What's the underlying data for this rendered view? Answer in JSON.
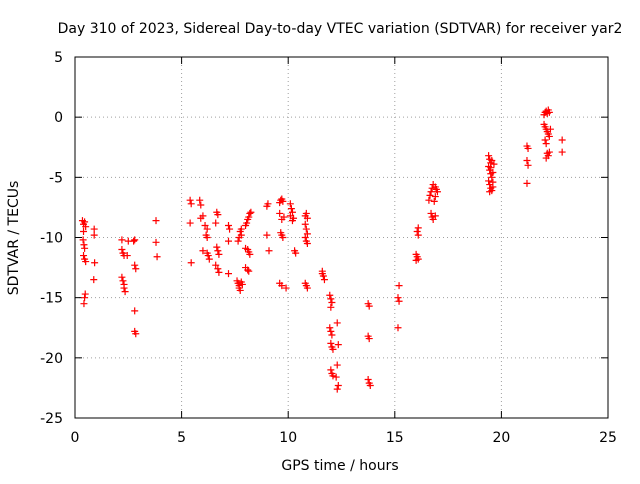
{
  "chart_data": {
    "type": "scatter",
    "title": "Day 310 of 2023, Sidereal Day-to-day VTEC variation (SDTVAR) for receiver yar2",
    "xlabel": "GPS time / hours",
    "ylabel": "SDTVAR / TECUs",
    "xlim": [
      0,
      25
    ],
    "ylim": [
      -25,
      5
    ],
    "xticks": [
      0,
      5,
      10,
      15,
      20,
      25
    ],
    "yticks": [
      -25,
      -20,
      -15,
      -10,
      -5,
      0,
      5
    ],
    "grid": true,
    "marker": "+",
    "color": "#ff0000",
    "series": [
      {
        "name": "SDTVAR",
        "points": [
          [
            0.35,
            -8.6
          ],
          [
            0.4,
            -8.9
          ],
          [
            0.45,
            -8.7
          ],
          [
            0.5,
            -9.1
          ],
          [
            0.4,
            -9.5
          ],
          [
            0.38,
            -10.2
          ],
          [
            0.42,
            -10.6
          ],
          [
            0.45,
            -10.9
          ],
          [
            0.4,
            -11.5
          ],
          [
            0.45,
            -11.8
          ],
          [
            0.5,
            -12.0
          ],
          [
            0.48,
            -14.7
          ],
          [
            0.45,
            -15.0
          ],
          [
            0.42,
            -15.5
          ],
          [
            0.9,
            -9.3
          ],
          [
            0.9,
            -9.8
          ],
          [
            0.92,
            -12.1
          ],
          [
            0.88,
            -13.5
          ],
          [
            2.2,
            -10.2
          ],
          [
            2.2,
            -11.0
          ],
          [
            2.25,
            -11.3
          ],
          [
            2.3,
            -11.5
          ],
          [
            2.2,
            -13.3
          ],
          [
            2.25,
            -13.6
          ],
          [
            2.3,
            -13.9
          ],
          [
            2.3,
            -14.2
          ],
          [
            2.35,
            -14.5
          ],
          [
            2.5,
            -10.3
          ],
          [
            2.45,
            -11.5
          ],
          [
            2.75,
            -10.3
          ],
          [
            2.8,
            -10.2
          ],
          [
            2.8,
            -12.3
          ],
          [
            2.85,
            -12.6
          ],
          [
            2.8,
            -16.1
          ],
          [
            2.8,
            -17.8
          ],
          [
            2.85,
            -18.0
          ],
          [
            3.8,
            -8.6
          ],
          [
            3.8,
            -10.4
          ],
          [
            3.85,
            -11.6
          ],
          [
            5.4,
            -6.9
          ],
          [
            5.45,
            -7.2
          ],
          [
            5.4,
            -8.8
          ],
          [
            5.45,
            -12.1
          ],
          [
            5.85,
            -6.9
          ],
          [
            5.9,
            -7.3
          ],
          [
            6.0,
            -8.2
          ],
          [
            5.9,
            -8.4
          ],
          [
            6.1,
            -9.0
          ],
          [
            6.2,
            -9.3
          ],
          [
            6.15,
            -9.8
          ],
          [
            6.2,
            -10.0
          ],
          [
            6.0,
            -11.1
          ],
          [
            6.2,
            -11.3
          ],
          [
            6.25,
            -11.5
          ],
          [
            6.3,
            -11.8
          ],
          [
            6.65,
            -7.9
          ],
          [
            6.7,
            -8.1
          ],
          [
            6.6,
            -8.8
          ],
          [
            6.65,
            -10.8
          ],
          [
            6.7,
            -11.1
          ],
          [
            6.75,
            -11.4
          ],
          [
            6.6,
            -12.3
          ],
          [
            6.7,
            -12.6
          ],
          [
            6.75,
            -12.9
          ],
          [
            7.2,
            -9.0
          ],
          [
            7.25,
            -9.3
          ],
          [
            7.2,
            -10.3
          ],
          [
            7.2,
            -13.0
          ],
          [
            7.65,
            -10.3
          ],
          [
            7.7,
            -10.0
          ],
          [
            7.8,
            -9.8
          ],
          [
            7.75,
            -9.5
          ],
          [
            7.8,
            -9.3
          ],
          [
            7.6,
            -13.6
          ],
          [
            7.65,
            -13.8
          ],
          [
            7.7,
            -14.0
          ],
          [
            7.7,
            -14.2
          ],
          [
            7.75,
            -14.4
          ],
          [
            7.8,
            -13.7
          ],
          [
            7.85,
            -13.9
          ],
          [
            8.0,
            -9.0
          ],
          [
            8.05,
            -8.8
          ],
          [
            8.1,
            -8.5
          ],
          [
            8.15,
            -8.3
          ],
          [
            8.2,
            -8.0
          ],
          [
            8.25,
            -7.9
          ],
          [
            8.0,
            -10.9
          ],
          [
            8.1,
            -11.0
          ],
          [
            8.15,
            -11.2
          ],
          [
            8.2,
            -11.4
          ],
          [
            8.0,
            -12.5
          ],
          [
            8.1,
            -12.7
          ],
          [
            8.15,
            -12.8
          ],
          [
            9.0,
            -7.4
          ],
          [
            9.05,
            -7.2
          ],
          [
            9.0,
            -9.8
          ],
          [
            9.1,
            -11.1
          ],
          [
            9.6,
            -7.1
          ],
          [
            9.65,
            -6.9
          ],
          [
            9.7,
            -6.8
          ],
          [
            9.75,
            -7.0
          ],
          [
            9.6,
            -8.0
          ],
          [
            9.7,
            -8.5
          ],
          [
            9.8,
            -8.3
          ],
          [
            9.65,
            -9.6
          ],
          [
            9.7,
            -9.8
          ],
          [
            9.75,
            -10.0
          ],
          [
            9.6,
            -13.8
          ],
          [
            9.7,
            -14.0
          ],
          [
            9.9,
            -14.2
          ],
          [
            10.1,
            -7.2
          ],
          [
            10.15,
            -7.6
          ],
          [
            10.2,
            -7.9
          ],
          [
            10.1,
            -8.2
          ],
          [
            10.25,
            -8.4
          ],
          [
            10.2,
            -8.6
          ],
          [
            10.3,
            -11.1
          ],
          [
            10.35,
            -11.3
          ],
          [
            10.8,
            -8.2
          ],
          [
            10.85,
            -8.0
          ],
          [
            10.9,
            -8.4
          ],
          [
            10.8,
            -8.9
          ],
          [
            10.85,
            -9.3
          ],
          [
            10.9,
            -9.7
          ],
          [
            10.8,
            -10.0
          ],
          [
            10.85,
            -10.3
          ],
          [
            10.9,
            -10.5
          ],
          [
            10.8,
            -13.8
          ],
          [
            10.85,
            -14.0
          ],
          [
            10.9,
            -14.2
          ],
          [
            11.6,
            -12.8
          ],
          [
            11.65,
            -13.2
          ],
          [
            11.7,
            -13.5
          ],
          [
            11.6,
            -13.0
          ],
          [
            11.95,
            -14.8
          ],
          [
            12.0,
            -15.1
          ],
          [
            12.05,
            -15.4
          ],
          [
            12.0,
            -15.8
          ],
          [
            11.95,
            -17.5
          ],
          [
            12.0,
            -17.8
          ],
          [
            12.05,
            -18.1
          ],
          [
            12.0,
            -18.8
          ],
          [
            12.05,
            -19.1
          ],
          [
            12.1,
            -19.3
          ],
          [
            12.0,
            -21.0
          ],
          [
            12.05,
            -21.3
          ],
          [
            12.1,
            -21.5
          ],
          [
            12.3,
            -17.1
          ],
          [
            12.35,
            -18.9
          ],
          [
            12.3,
            -20.6
          ],
          [
            12.25,
            -21.6
          ],
          [
            12.35,
            -22.3
          ],
          [
            12.3,
            -22.6
          ],
          [
            13.75,
            -15.5
          ],
          [
            13.8,
            -15.7
          ],
          [
            13.75,
            -18.2
          ],
          [
            13.8,
            -18.4
          ],
          [
            13.75,
            -21.8
          ],
          [
            13.8,
            -22.1
          ],
          [
            13.85,
            -22.3
          ],
          [
            15.2,
            -14.0
          ],
          [
            15.15,
            -15.0
          ],
          [
            15.2,
            -15.3
          ],
          [
            15.15,
            -17.5
          ],
          [
            16.0,
            -11.4
          ],
          [
            16.05,
            -11.6
          ],
          [
            16.1,
            -11.8
          ],
          [
            16.0,
            -11.9
          ],
          [
            16.1,
            -9.8
          ],
          [
            16.05,
            -9.5
          ],
          [
            16.1,
            -9.2
          ],
          [
            16.6,
            -6.9
          ],
          [
            16.65,
            -6.5
          ],
          [
            16.7,
            -6.2
          ],
          [
            16.75,
            -5.9
          ],
          [
            16.8,
            -5.6
          ],
          [
            16.9,
            -5.8
          ],
          [
            16.95,
            -6.0
          ],
          [
            17.0,
            -6.2
          ],
          [
            16.9,
            -6.6
          ],
          [
            16.85,
            -7.0
          ],
          [
            16.7,
            -8.0
          ],
          [
            16.75,
            -8.3
          ],
          [
            16.8,
            -8.5
          ],
          [
            16.9,
            -8.2
          ],
          [
            19.4,
            -3.2
          ],
          [
            19.45,
            -3.5
          ],
          [
            19.5,
            -3.8
          ],
          [
            19.4,
            -4.1
          ],
          [
            19.45,
            -4.4
          ],
          [
            19.5,
            -4.7
          ],
          [
            19.55,
            -5.0
          ],
          [
            19.4,
            -5.3
          ],
          [
            19.45,
            -5.6
          ],
          [
            19.5,
            -5.9
          ],
          [
            19.55,
            -6.1
          ],
          [
            19.6,
            -5.4
          ],
          [
            19.6,
            -4.6
          ],
          [
            19.65,
            -3.9
          ],
          [
            19.5,
            -4.2
          ],
          [
            19.55,
            -3.6
          ],
          [
            19.6,
            -5.8
          ],
          [
            19.45,
            -6.2
          ],
          [
            21.2,
            -2.4
          ],
          [
            21.25,
            -2.6
          ],
          [
            21.2,
            -3.6
          ],
          [
            21.25,
            -4.0
          ],
          [
            21.2,
            -5.5
          ],
          [
            22.0,
            0.2
          ],
          [
            22.05,
            0.4
          ],
          [
            22.1,
            0.5
          ],
          [
            22.15,
            0.3
          ],
          [
            22.2,
            0.6
          ],
          [
            22.25,
            0.4
          ],
          [
            22.0,
            -0.6
          ],
          [
            22.05,
            -0.8
          ],
          [
            22.1,
            -1.0
          ],
          [
            22.15,
            -1.2
          ],
          [
            22.2,
            -1.4
          ],
          [
            22.25,
            -1.6
          ],
          [
            22.3,
            -1.0
          ],
          [
            22.05,
            -1.9
          ],
          [
            22.1,
            -2.2
          ],
          [
            22.15,
            -3.0
          ],
          [
            22.2,
            -3.2
          ],
          [
            22.1,
            -3.4
          ],
          [
            22.25,
            -2.9
          ],
          [
            22.85,
            -1.9
          ],
          [
            22.85,
            -2.9
          ]
        ]
      }
    ]
  }
}
